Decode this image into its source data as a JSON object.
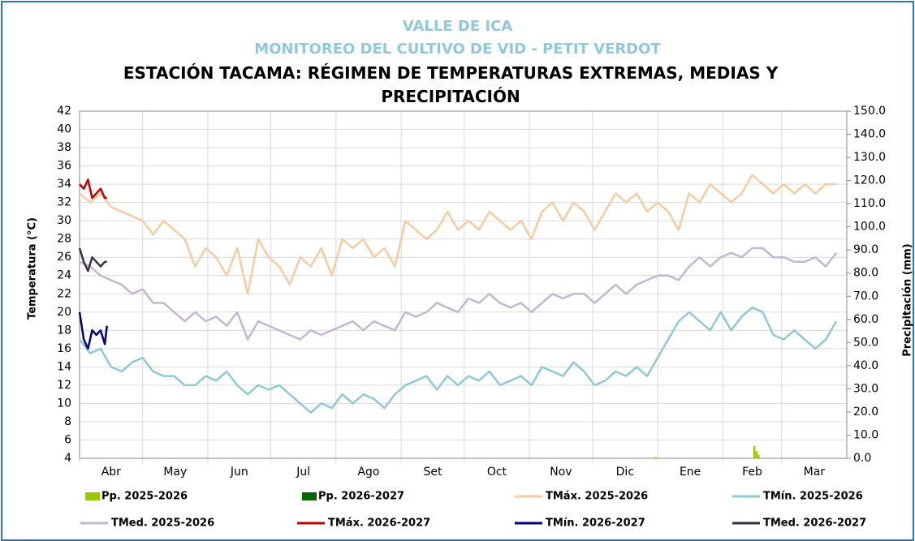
{
  "chart_data": {
    "type": "line",
    "title_line1": "VALLE DE ICA",
    "title_line2": "MONITOREO DEL CULTIVO DE VID - PETIT VERDOT",
    "title": "ESTACIÓN TACAMA: RÉGIMEN DE TEMPERATURAS EXTREMAS, MEDIAS Y PRECIPITACIÓN",
    "y_label": "Temperatura (°C)",
    "y2_label": "Precipitación (mm)",
    "xlim": [
      0,
      365
    ],
    "xticks": [
      {
        "value": 0,
        "label": "Abr"
      },
      {
        "value": 30,
        "label": "May"
      },
      {
        "value": 61,
        "label": "Jun"
      },
      {
        "value": 91,
        "label": "Jul"
      },
      {
        "value": 122,
        "label": "Ago"
      },
      {
        "value": 153,
        "label": "Set"
      },
      {
        "value": 183,
        "label": "Oct"
      },
      {
        "value": 214,
        "label": "Nov"
      },
      {
        "value": 244,
        "label": "Dic"
      },
      {
        "value": 275,
        "label": "Ene"
      },
      {
        "value": 306,
        "label": "Feb"
      },
      {
        "value": 334,
        "label": "Mar"
      }
    ],
    "ylim": [
      4,
      42
    ],
    "yticks": [
      4,
      6,
      8,
      10,
      12,
      14,
      16,
      18,
      20,
      22,
      24,
      26,
      28,
      30,
      32,
      34,
      36,
      38,
      40,
      42
    ],
    "y2lim": [
      0,
      150
    ],
    "y2ticks": [
      {
        "value": 0,
        "label": "0.0"
      },
      {
        "value": 10,
        "label": "10.0"
      },
      {
        "value": 20,
        "label": "20.0"
      },
      {
        "value": 30,
        "label": "30.0"
      },
      {
        "value": 40,
        "label": "40.0"
      },
      {
        "value": 50,
        "label": "50.0"
      },
      {
        "value": 60,
        "label": "60.0"
      },
      {
        "value": 70,
        "label": "70.0"
      },
      {
        "value": 80,
        "label": "80.0"
      },
      {
        "value": 90,
        "label": "90.0"
      },
      {
        "value": 100,
        "label": "100.0"
      },
      {
        "value": 110,
        "label": "110.0"
      },
      {
        "value": 120,
        "label": "120.0"
      },
      {
        "value": 130,
        "label": "130.0"
      },
      {
        "value": 140,
        "label": "140.0"
      },
      {
        "value": 150,
        "label": "150.0"
      }
    ],
    "grid": true,
    "x": [
      0,
      5,
      10,
      15,
      20,
      25,
      30,
      35,
      40,
      45,
      50,
      55,
      60,
      65,
      70,
      75,
      80,
      85,
      90,
      95,
      100,
      105,
      110,
      115,
      120,
      125,
      130,
      135,
      140,
      145,
      150,
      155,
      160,
      165,
      170,
      175,
      180,
      185,
      190,
      195,
      200,
      205,
      210,
      215,
      220,
      225,
      230,
      235,
      240,
      245,
      250,
      255,
      260,
      265,
      270,
      275,
      280,
      285,
      290,
      295,
      300,
      305,
      310,
      315,
      320,
      325,
      330,
      335,
      340,
      345,
      350,
      355,
      360
    ],
    "series": [
      {
        "name": "Pp. 2025-2026",
        "type": "bar",
        "axis": "y2",
        "color": "#99cc00",
        "x": [
          274,
          321,
          322,
          323
        ],
        "values": [
          0.5,
          5.3,
          3.0,
          1.5
        ]
      },
      {
        "name": "Pp. 2026-2027",
        "type": "bar",
        "axis": "y2",
        "color": "#006600",
        "x": [],
        "values": []
      },
      {
        "name": "TMáx. 2025-2026",
        "color": "#f9cba0",
        "values": [
          33,
          32,
          33,
          31.5,
          31,
          30.5,
          30,
          28.5,
          30,
          29,
          28,
          25,
          27,
          26,
          24,
          27,
          22,
          28,
          26,
          25,
          23,
          26,
          25,
          27,
          24,
          28,
          27,
          28,
          26,
          27,
          25,
          30,
          29,
          28,
          29,
          31,
          29,
          30,
          29,
          31,
          30,
          29,
          30,
          28,
          31,
          32,
          30,
          32,
          31,
          29,
          31,
          33,
          32,
          33,
          31,
          32,
          31,
          29,
          33,
          32,
          34,
          33,
          32,
          33,
          35,
          34,
          33,
          34,
          33,
          34,
          33,
          34,
          34
        ]
      },
      {
        "name": "TMín. 2025-2026",
        "color": "#8ec9d8",
        "values": [
          17,
          15.5,
          16,
          14,
          13.5,
          14.5,
          15,
          13.5,
          13,
          13,
          12,
          12,
          13,
          12.5,
          13.5,
          12,
          11,
          12,
          11.5,
          12,
          11,
          10,
          9,
          10,
          9.5,
          11,
          10,
          11,
          10.5,
          9.5,
          11,
          12,
          12.5,
          13,
          11.5,
          13,
          12,
          13,
          12.5,
          13.5,
          12,
          12.5,
          13,
          12,
          14,
          13.5,
          13,
          14.5,
          13.5,
          12,
          12.5,
          13.5,
          13,
          14,
          13,
          15,
          17,
          19,
          20,
          19,
          18,
          20,
          18,
          19.5,
          20.5,
          20,
          17.5,
          17,
          18,
          17,
          16,
          17,
          19
        ]
      },
      {
        "name": "TMed. 2025-2026",
        "color": "#c6b6d6",
        "values": [
          25.5,
          25,
          24,
          23.5,
          23,
          22,
          22.5,
          21,
          21,
          20,
          19,
          20,
          19,
          19.5,
          18.5,
          20,
          17,
          19,
          18.5,
          18,
          17.5,
          17,
          18,
          17.5,
          18,
          18.5,
          19,
          18,
          19,
          18.5,
          18,
          20,
          19.5,
          20,
          21,
          20.5,
          20,
          21.5,
          21,
          22,
          21,
          20.5,
          21,
          20,
          21,
          22,
          21.5,
          22,
          22,
          21,
          22,
          23,
          22,
          23,
          23.5,
          24,
          24,
          23.5,
          25,
          26,
          25,
          26,
          26.5,
          26,
          27,
          27,
          26,
          26,
          25.5,
          25.5,
          26,
          25,
          26.5
        ]
      },
      {
        "name": "TMáx. 2026-2027",
        "color": "#c00000",
        "x": [
          0,
          2,
          4,
          6,
          8,
          10,
          12,
          13
        ],
        "values": [
          34,
          33.5,
          34.5,
          32.5,
          33,
          33.5,
          32.5,
          32.5
        ]
      },
      {
        "name": "TMín. 2026-2027",
        "color": "#00007f",
        "x": [
          0,
          2,
          4,
          6,
          8,
          10,
          12,
          13
        ],
        "values": [
          20,
          17,
          16,
          18,
          17.5,
          18,
          16.5,
          18.5
        ]
      },
      {
        "name": "TMed. 2026-2027",
        "color": "#3a2f40",
        "x": [
          0,
          2,
          4,
          6,
          8,
          10,
          12,
          13
        ],
        "values": [
          27,
          25.5,
          24.5,
          26,
          25.5,
          25,
          25.5,
          25.5
        ]
      }
    ]
  }
}
